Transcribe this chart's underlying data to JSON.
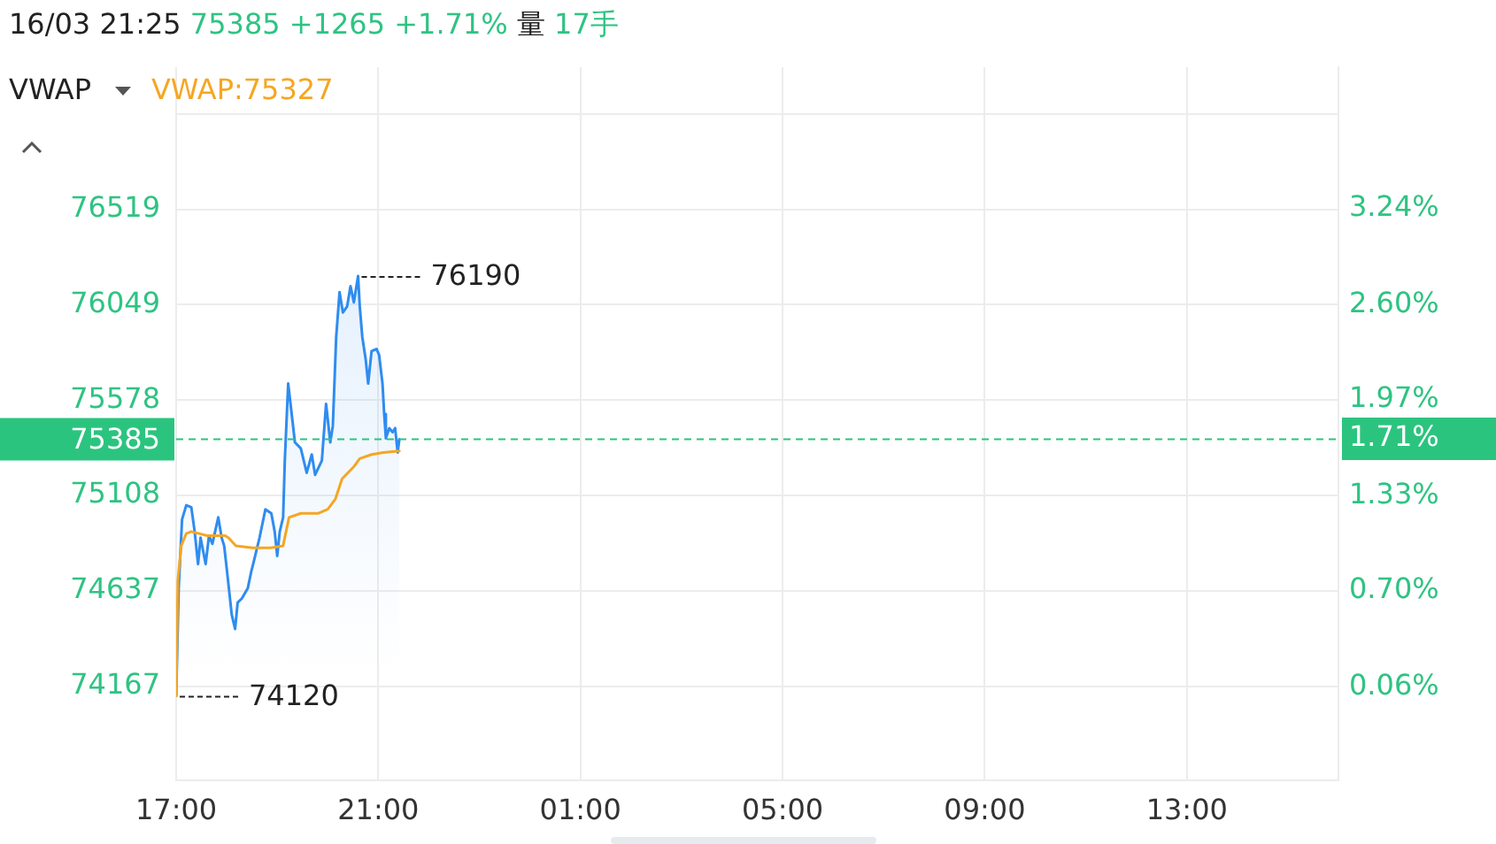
{
  "chart_data": {
    "type": "line",
    "title": "16/03 21:25 75385 +1265 +1.71% 量 17手",
    "legend_title": "VWAP",
    "legend": "top left",
    "xlim": [
      "--03-16T17:00",
      "--03-17T16:00"
    ],
    "xticks": [
      {
        "value": "--03-16T17:00",
        "label": "17:00"
      },
      {
        "value": "--03-16T21:00",
        "label": "21:00"
      },
      {
        "value": "--03-17T01:00",
        "label": "01:00"
      },
      {
        "value": "--03-17T05:00",
        "label": "05:00"
      },
      {
        "value": "--03-17T09:00",
        "label": "09:00"
      },
      {
        "value": "--03-17T13:00",
        "label": "13:00"
      }
    ],
    "ylim": [
      73704,
      77219
    ],
    "yticks": [
      74167,
      74637,
      75108,
      75578,
      76049,
      76519,
      {
        "value": 76989,
        "label": null
      }
    ],
    "y2lim": [
      -0.561,
      4.181
    ],
    "y2ticks": [
      {
        "value": 0.06,
        "label": "0.06%"
      },
      {
        "value": 0.7,
        "label": "0.70%"
      },
      {
        "value": 1.33,
        "label": "1.33%"
      },
      {
        "value": 1.71,
        "label": "1.71%"
      },
      {
        "value": 1.97,
        "label": "1.97%"
      },
      {
        "value": 2.6,
        "label": "2.60%"
      },
      {
        "value": 3.24,
        "label": "3.24%"
      }
    ],
    "grid": true,
    "ref_lines": [
      {
        "axis": "y",
        "value": 75385,
        "label": "75385",
        "color": "#2bc47f",
        "line_style": "dashed"
      }
    ],
    "annotations": [
      {
        "text": "74120",
        "x": "--03-16T17:00",
        "y": 74120
      },
      {
        "text": "76190",
        "x": "--03-16T20:36",
        "y": 76190
      }
    ],
    "series": [
      {
        "type": "area",
        "color": "#2f8cf0",
        "x": [
          "--03-16T17:00",
          "--03-16T17:03",
          "--03-16T17:07",
          "--03-16T17:12",
          "--03-16T17:18",
          "--03-16T17:22",
          "--03-16T17:26",
          "--03-16T17:29",
          "--03-16T17:35",
          "--03-16T17:39",
          "--03-16T17:43",
          "--03-16T17:50",
          "--03-16T17:54",
          "--03-16T17:57",
          "--03-16T18:00",
          "--03-16T18:06",
          "--03-16T18:10",
          "--03-16T18:13",
          "--03-16T18:18",
          "--03-16T18:25",
          "--03-16T18:29",
          "--03-16T18:32",
          "--03-16T18:39",
          "--03-16T18:46",
          "--03-16T18:53",
          "--03-16T18:57",
          "--03-16T19:00",
          "--03-16T19:03",
          "--03-16T19:07",
          "--03-16T19:09",
          "--03-16T19:13",
          "--03-16T19:18",
          "--03-16T19:21",
          "--03-16T19:28",
          "--03-16T19:35",
          "--03-16T19:41",
          "--03-16T19:45",
          "--03-16T19:53",
          "--03-16T19:58",
          "--03-16T20:03",
          "--03-16T20:06",
          "--03-16T20:10",
          "--03-16T20:14",
          "--03-16T20:18",
          "--03-16T20:23",
          "--03-16T20:27",
          "--03-16T20:31",
          "--03-16T20:36",
          "--03-16T20:38",
          "--03-16T20:41",
          "--03-16T20:45",
          "--03-16T20:48",
          "--03-16T20:52",
          "--03-16T20:58",
          "--03-16T21:01",
          "--03-16T21:05",
          "--03-16T21:07",
          "--03-16T21:09",
          "--03-16T21:13",
          "--03-16T21:17",
          "--03-16T21:20",
          "--03-16T21:23",
          "--03-16T21:25"
        ],
        "values": [
          74120,
          74650,
          74990,
          75060,
          75050,
          74930,
          74770,
          74900,
          74770,
          74910,
          74870,
          75000,
          74900,
          74860,
          74750,
          74520,
          74450,
          74580,
          74600,
          74650,
          74730,
          74780,
          74900,
          75040,
          75020,
          74930,
          74810,
          74930,
          75000,
          75280,
          75660,
          75480,
          75370,
          75340,
          75220,
          75310,
          75210,
          75280,
          75560,
          75370,
          75450,
          75890,
          76110,
          76010,
          76040,
          76140,
          76060,
          76190,
          76040,
          75890,
          75780,
          75660,
          75820,
          75830,
          75800,
          75660,
          75510,
          75390,
          75440,
          75420,
          75440,
          75320,
          75385
        ]
      },
      {
        "type": "line",
        "name": "VWAP:75327",
        "color": "#f5a623",
        "x": [
          "--03-16T17:00",
          "--03-16T17:02",
          "--03-16T17:06",
          "--03-16T17:12",
          "--03-16T17:18",
          "--03-16T17:37",
          "--03-16T17:58",
          "--03-16T18:02",
          "--03-16T18:11",
          "--03-16T18:31",
          "--03-16T18:52",
          "--03-16T19:07",
          "--03-16T19:14",
          "--03-16T19:28",
          "--03-16T19:49",
          "--03-16T20:00",
          "--03-16T20:09",
          "--03-16T20:17",
          "--03-16T20:31",
          "--03-16T20:38",
          "--03-16T20:52",
          "--03-16T21:06",
          "--03-16T21:25"
        ],
        "values": [
          74120,
          74690,
          74860,
          74920,
          74930,
          74910,
          74910,
          74900,
          74860,
          74850,
          74850,
          74860,
          75000,
          75020,
          75020,
          75040,
          75090,
          75190,
          75250,
          75290,
          75310,
          75320,
          75327
        ]
      }
    ]
  }
}
